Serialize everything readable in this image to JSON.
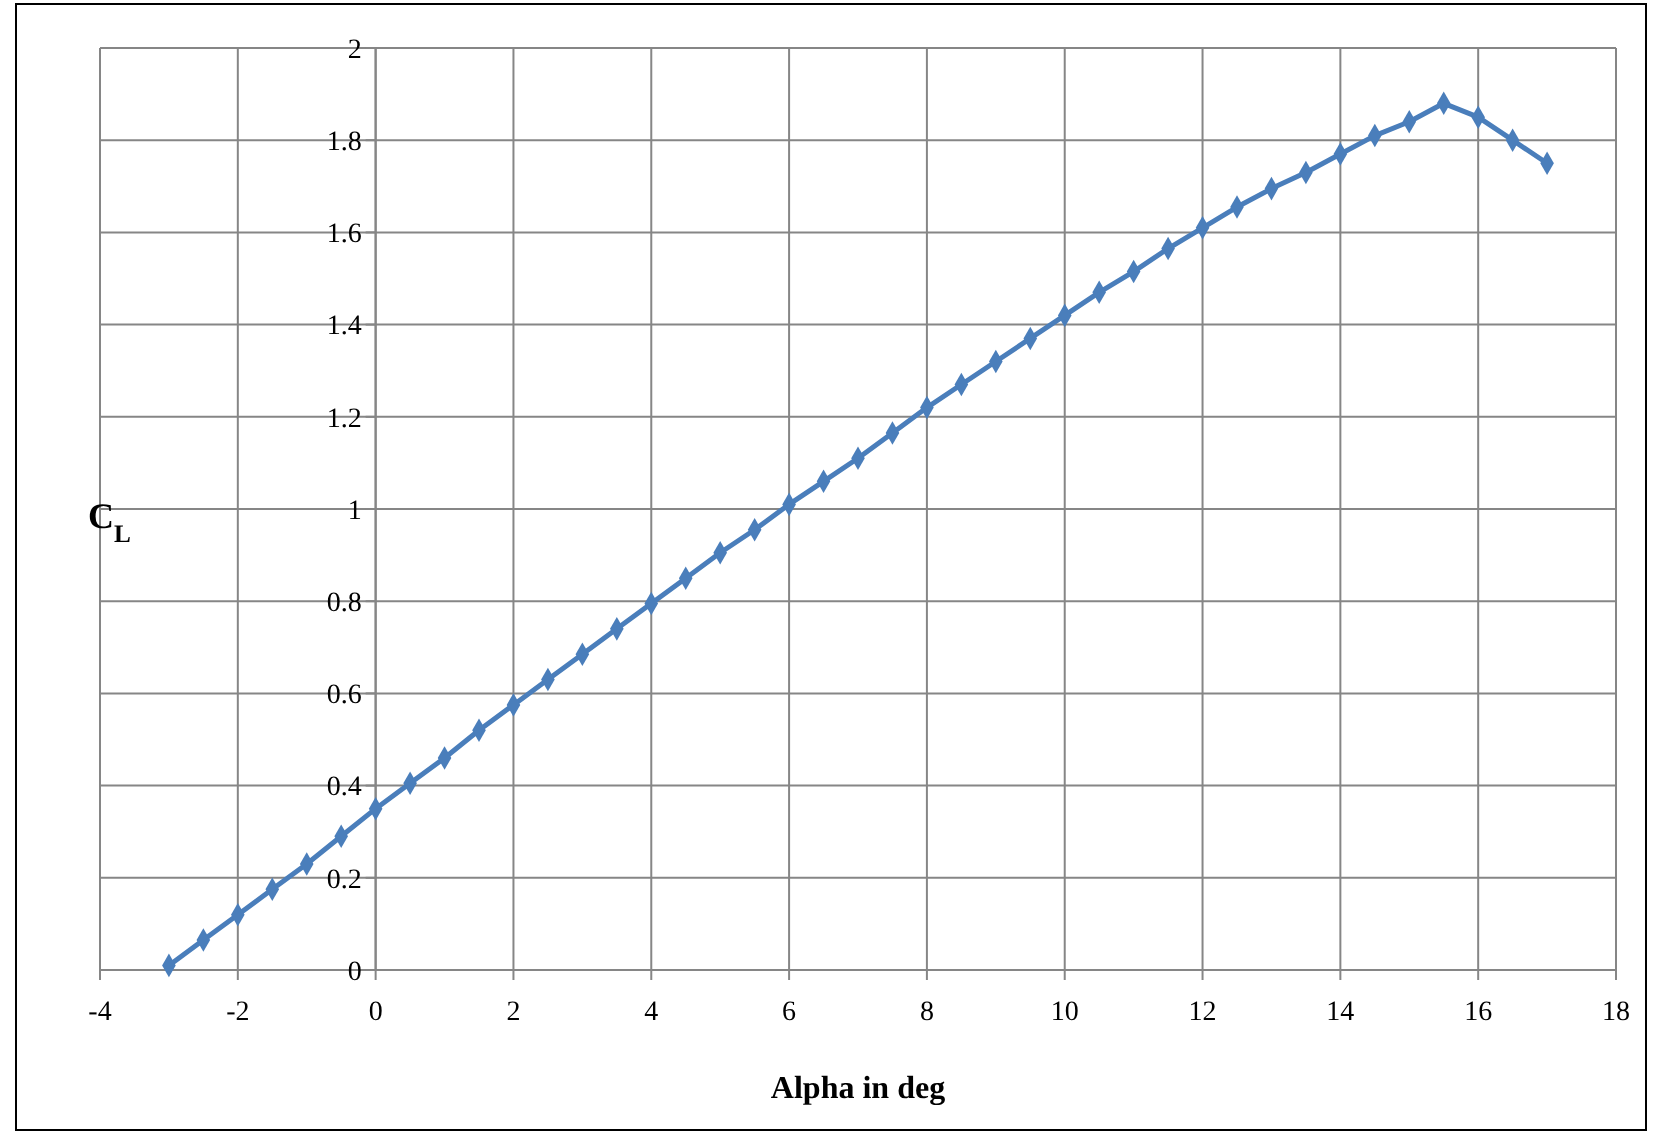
{
  "chart_data": {
    "type": "line",
    "xlabel": "Alpha in deg",
    "ylabel": "C$_{L}$",
    "x": [
      -3,
      -2.5,
      -2,
      -1.5,
      -1,
      -0.5,
      0,
      0.5,
      1,
      1.5,
      2,
      2.5,
      3,
      3.5,
      4,
      4.5,
      5,
      5.5,
      6,
      6.5,
      7,
      7.5,
      8,
      8.5,
      9,
      9.5,
      10,
      10.5,
      11,
      11.5,
      12,
      12.5,
      13,
      13.5,
      14,
      14.5,
      15,
      15.5,
      16,
      16.5,
      17
    ],
    "series": [
      {
        "color": "#4a7ebb",
        "values": [
          0.01,
          0.065,
          0.12,
          0.175,
          0.23,
          0.29,
          0.35,
          0.405,
          0.46,
          0.52,
          0.575,
          0.63,
          0.685,
          0.74,
          0.795,
          0.85,
          0.905,
          0.955,
          1.01,
          1.06,
          1.11,
          1.165,
          1.22,
          1.27,
          1.32,
          1.37,
          1.42,
          1.47,
          1.515,
          1.565,
          1.61,
          1.655,
          1.695,
          1.73,
          1.77,
          1.81,
          1.84,
          1.88,
          1.85,
          1.8,
          1.75
        ]
      }
    ],
    "xlim": [
      -4,
      18
    ],
    "xticks": [
      -4,
      -2,
      0,
      2,
      4,
      6,
      8,
      10,
      12,
      14,
      16,
      18
    ],
    "ylim": [
      0,
      2
    ],
    "yticks": [
      0,
      0.2,
      0.4,
      0.6,
      0.8,
      1,
      1.2,
      1.4,
      1.6,
      1.8,
      2
    ],
    "grid": true,
    "marker": "diamond",
    "line_style": "solid"
  }
}
